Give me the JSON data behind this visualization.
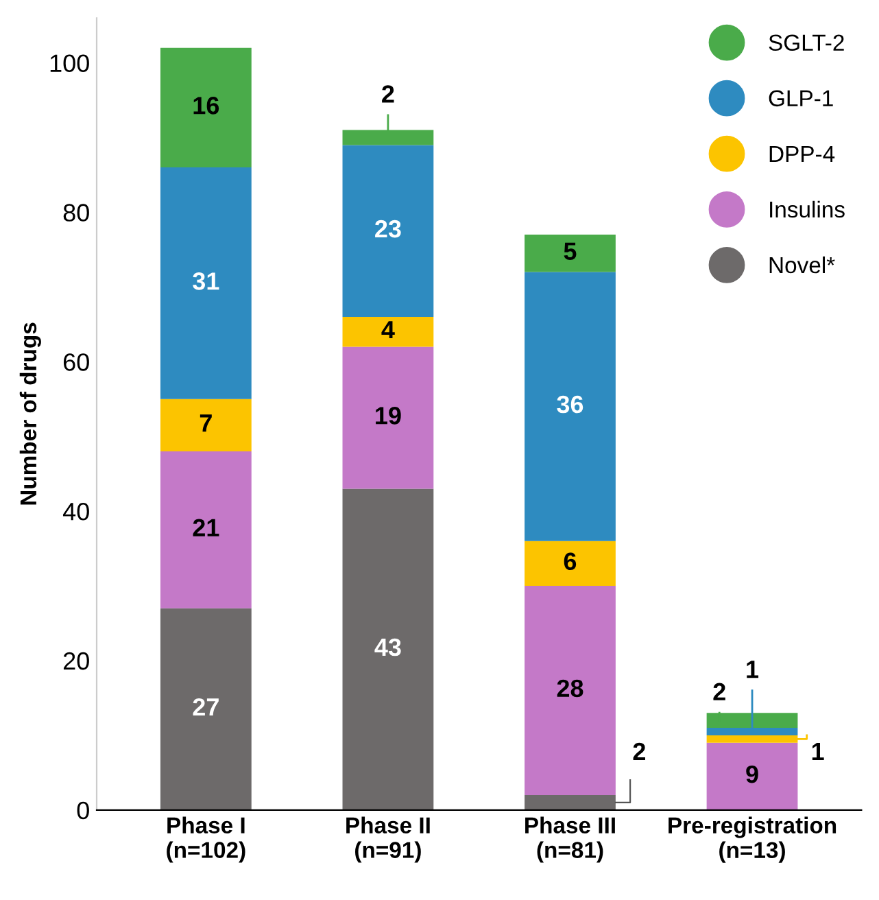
{
  "chart_data": {
    "type": "bar",
    "stacked": true,
    "ylabel": "Number of drugs",
    "categories": [
      "Phase I\n(n=102)",
      "Phase II\n(n=91)",
      "Phase III\n(n=81)",
      "Pre-registration\n(n=13)"
    ],
    "series": [
      {
        "name": "Novel*",
        "color": "#6d6a6a",
        "values": [
          27,
          43,
          2,
          null
        ]
      },
      {
        "name": "Insulins",
        "color": "#c479c8",
        "values": [
          21,
          19,
          28,
          9
        ]
      },
      {
        "name": "DPP-4",
        "color": "#fcc400",
        "values": [
          7,
          4,
          6,
          1
        ]
      },
      {
        "name": "GLP-1",
        "color": "#2e8bc0",
        "values": [
          31,
          23,
          36,
          1
        ]
      },
      {
        "name": "SGLT-2",
        "color": "#4aab4a",
        "values": [
          16,
          2,
          5,
          2
        ]
      }
    ],
    "ylim": [
      0,
      106
    ],
    "yticks": [
      0,
      20,
      40,
      60,
      80,
      100
    ],
    "data_labels": true,
    "grid": false,
    "legend": "top right"
  }
}
